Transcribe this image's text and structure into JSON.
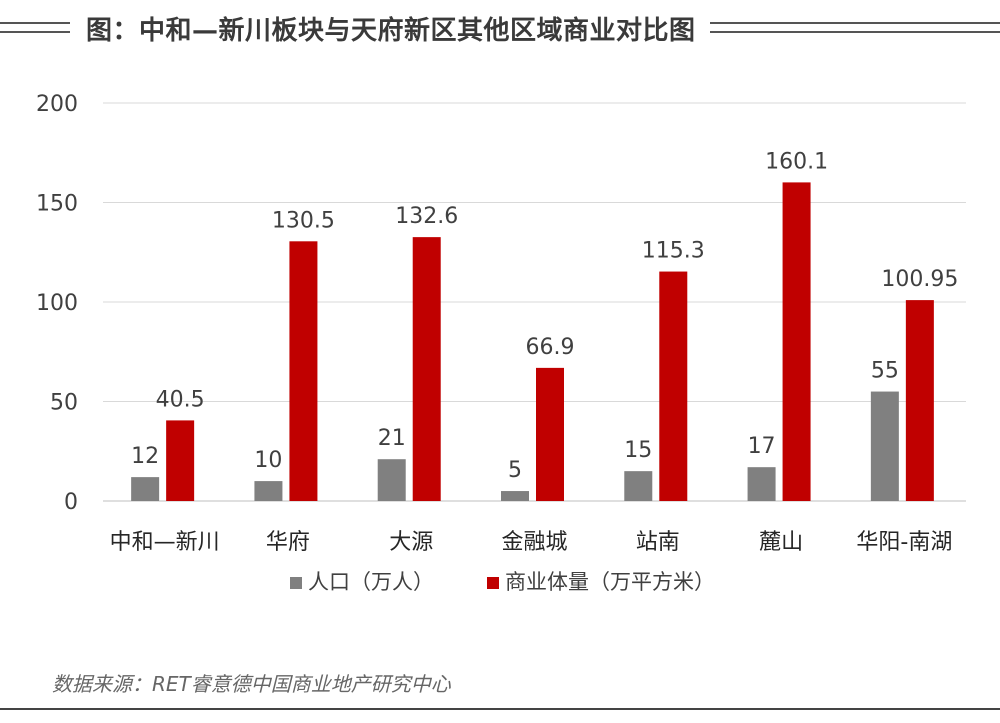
{
  "header": {
    "title": "图：中和—新川板块与天府新区其他区域商业对比图"
  },
  "chart_data": {
    "type": "bar",
    "title": "",
    "xlabel": "",
    "ylabel": "",
    "ylim": [
      0,
      200
    ],
    "yticks": [
      0,
      50,
      100,
      150,
      200
    ],
    "grid": true,
    "legend_position": "bottom",
    "categories": [
      "中和—新川",
      "华府",
      "大源",
      "金融城",
      "站南",
      "麓山",
      "华阳-南湖"
    ],
    "series": [
      {
        "name": "人口（万人）",
        "color": "#808080",
        "values": [
          12,
          10,
          21,
          5,
          15,
          17,
          55
        ],
        "labels": [
          "12",
          "10",
          "21",
          "5",
          "15",
          "17",
          "55"
        ]
      },
      {
        "name": "商业体量（万平方米）",
        "color": "#c00000",
        "values": [
          40.5,
          130.5,
          132.6,
          66.9,
          115.3,
          160.1,
          100.95
        ],
        "labels": [
          "40.5",
          "130.5",
          "132.6",
          "66.9",
          "115.3",
          "160.1",
          "100.95"
        ]
      }
    ]
  },
  "footer": {
    "source": "数据来源：RET睿意德中国商业地产研究中心"
  }
}
